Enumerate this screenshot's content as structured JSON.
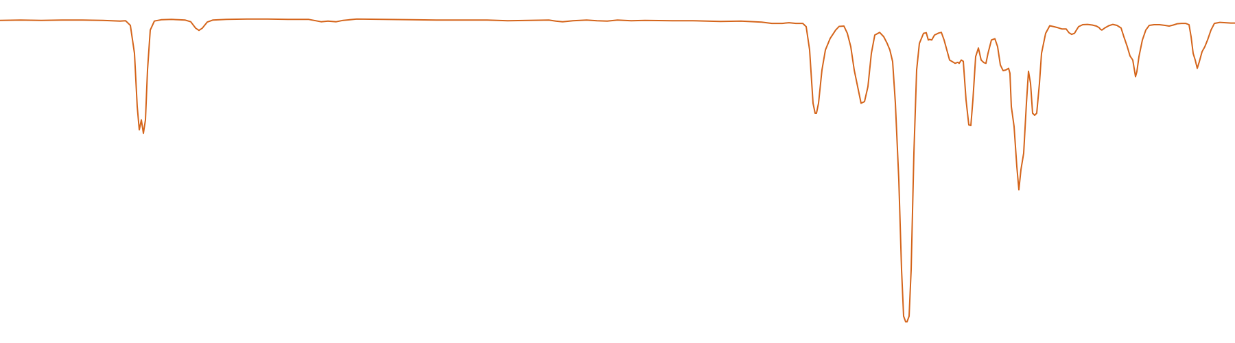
{
  "chart_data": {
    "type": "line",
    "title": "",
    "xlabel": "",
    "ylabel": "",
    "axes_visible": false,
    "grid": false,
    "legend": "none",
    "xlim": [
      0,
      1800
    ],
    "ylim": [
      0,
      100
    ],
    "series": [
      {
        "color": "#d4641a",
        "points": [
          [
            0,
            94.9
          ],
          [
            30,
            95.0
          ],
          [
            60,
            94.9
          ],
          [
            90,
            95.0
          ],
          [
            120,
            95.0
          ],
          [
            150,
            94.9
          ],
          [
            175,
            94.7
          ],
          [
            183,
            94.8
          ],
          [
            190,
            93.4
          ],
          [
            196,
            85.0
          ],
          [
            200,
            69.0
          ],
          [
            203,
            62.0
          ],
          [
            206,
            65.0
          ],
          [
            209,
            61.0
          ],
          [
            212,
            65.0
          ],
          [
            215,
            80.0
          ],
          [
            219,
            92.0
          ],
          [
            225,
            94.7
          ],
          [
            235,
            95.1
          ],
          [
            250,
            95.2
          ],
          [
            260,
            95.1
          ],
          [
            270,
            95.0
          ],
          [
            278,
            94.5
          ],
          [
            285,
            92.6
          ],
          [
            290,
            91.9
          ],
          [
            295,
            92.6
          ],
          [
            302,
            94.4
          ],
          [
            310,
            95.0
          ],
          [
            330,
            95.2
          ],
          [
            360,
            95.3
          ],
          [
            390,
            95.3
          ],
          [
            420,
            95.2
          ],
          [
            450,
            95.2
          ],
          [
            460,
            94.8
          ],
          [
            468,
            94.5
          ],
          [
            478,
            94.7
          ],
          [
            490,
            94.5
          ],
          [
            500,
            94.9
          ],
          [
            520,
            95.3
          ],
          [
            560,
            95.2
          ],
          [
            600,
            95.1
          ],
          [
            640,
            95.0
          ],
          [
            680,
            95.0
          ],
          [
            710,
            95.0
          ],
          [
            740,
            94.8
          ],
          [
            770,
            94.9
          ],
          [
            800,
            95.0
          ],
          [
            810,
            94.7
          ],
          [
            820,
            94.5
          ],
          [
            835,
            94.8
          ],
          [
            855,
            95.0
          ],
          [
            870,
            94.8
          ],
          [
            885,
            94.7
          ],
          [
            900,
            95.0
          ],
          [
            920,
            94.8
          ],
          [
            940,
            94.9
          ],
          [
            980,
            94.8
          ],
          [
            1010,
            94.8
          ],
          [
            1050,
            94.6
          ],
          [
            1080,
            94.7
          ],
          [
            1100,
            94.5
          ],
          [
            1110,
            94.4
          ],
          [
            1125,
            94.0
          ],
          [
            1140,
            94.0
          ],
          [
            1150,
            94.2
          ],
          [
            1160,
            94.0
          ],
          [
            1170,
            94.0
          ],
          [
            1175,
            93.0
          ],
          [
            1180,
            86.0
          ],
          [
            1185,
            70.0
          ],
          [
            1188,
            67.0
          ],
          [
            1190,
            67.0
          ],
          [
            1193,
            70.0
          ],
          [
            1198,
            80.0
          ],
          [
            1203,
            86.0
          ],
          [
            1210,
            89.5
          ],
          [
            1218,
            92.0
          ],
          [
            1223,
            93.1
          ],
          [
            1230,
            93.2
          ],
          [
            1235,
            91.0
          ],
          [
            1240,
            87.0
          ],
          [
            1245,
            80.0
          ],
          [
            1250,
            75.0
          ],
          [
            1255,
            70.0
          ],
          [
            1260,
            70.5
          ],
          [
            1265,
            75.0
          ],
          [
            1270,
            85.0
          ],
          [
            1275,
            90.5
          ],
          [
            1282,
            91.3
          ],
          [
            1288,
            90.0
          ],
          [
            1293,
            88.0
          ],
          [
            1297,
            86.0
          ],
          [
            1301,
            82.5
          ],
          [
            1305,
            70.0
          ],
          [
            1310,
            47.0
          ],
          [
            1314,
            20.0
          ],
          [
            1317,
            6.0
          ],
          [
            1320,
            4.3
          ],
          [
            1322,
            4.3
          ],
          [
            1325,
            6.0
          ],
          [
            1328,
            20.0
          ],
          [
            1332,
            55.0
          ],
          [
            1336,
            80.0
          ],
          [
            1340,
            88.0
          ],
          [
            1346,
            91.0
          ],
          [
            1350,
            91.2
          ],
          [
            1353,
            89.0
          ],
          [
            1355,
            89.2
          ],
          [
            1358,
            89.0
          ],
          [
            1362,
            90.5
          ],
          [
            1368,
            91.1
          ],
          [
            1372,
            91.3
          ],
          [
            1376,
            89.0
          ],
          [
            1380,
            86.0
          ],
          [
            1384,
            83.0
          ],
          [
            1388,
            82.5
          ],
          [
            1392,
            82.0
          ],
          [
            1396,
            82.3
          ],
          [
            1398,
            82.0
          ],
          [
            1401,
            83.0
          ],
          [
            1404,
            82.6
          ],
          [
            1408,
            71.0
          ],
          [
            1412,
            63.5
          ],
          [
            1415,
            63.3
          ],
          [
            1418,
            71.0
          ],
          [
            1422,
            84.0
          ],
          [
            1426,
            86.6
          ],
          [
            1430,
            83.0
          ],
          [
            1434,
            82.2
          ],
          [
            1437,
            82.0
          ],
          [
            1440,
            85.0
          ],
          [
            1445,
            89.0
          ],
          [
            1450,
            89.4
          ],
          [
            1454,
            87.0
          ],
          [
            1458,
            81.5
          ],
          [
            1462,
            79.8
          ],
          [
            1466,
            80.0
          ],
          [
            1470,
            80.5
          ],
          [
            1472,
            79.0
          ],
          [
            1474,
            69.0
          ],
          [
            1478,
            63.0
          ],
          [
            1482,
            51.0
          ],
          [
            1485,
            44.0
          ],
          [
            1488,
            50.0
          ],
          [
            1492,
            55.0
          ],
          [
            1496,
            70.0
          ],
          [
            1499,
            79.6
          ],
          [
            1502,
            76.0
          ],
          [
            1505,
            67.0
          ],
          [
            1508,
            66.4
          ],
          [
            1511,
            67.0
          ],
          [
            1515,
            76.0
          ],
          [
            1518,
            85.0
          ],
          [
            1524,
            91.0
          ],
          [
            1530,
            93.3
          ],
          [
            1536,
            93.0
          ],
          [
            1542,
            92.7
          ],
          [
            1548,
            92.3
          ],
          [
            1554,
            92.3
          ],
          [
            1558,
            91.2
          ],
          [
            1562,
            90.7
          ],
          [
            1566,
            91.0
          ],
          [
            1568,
            91.7
          ],
          [
            1572,
            93.0
          ],
          [
            1578,
            93.6
          ],
          [
            1585,
            93.7
          ],
          [
            1592,
            93.5
          ],
          [
            1598,
            93.2
          ],
          [
            1602,
            92.7
          ],
          [
            1604,
            92.2
          ],
          [
            1606,
            92.0
          ],
          [
            1610,
            92.6
          ],
          [
            1616,
            93.3
          ],
          [
            1622,
            93.7
          ],
          [
            1628,
            93.4
          ],
          [
            1634,
            92.6
          ],
          [
            1638,
            90.0
          ],
          [
            1643,
            87.0
          ],
          [
            1647,
            84.2
          ],
          [
            1651,
            83.0
          ],
          [
            1655,
            78.0
          ],
          [
            1657,
            79.5
          ],
          [
            1660,
            84.0
          ],
          [
            1665,
            89.0
          ],
          [
            1670,
            92.0
          ],
          [
            1675,
            93.4
          ],
          [
            1682,
            93.6
          ],
          [
            1690,
            93.6
          ],
          [
            1698,
            93.4
          ],
          [
            1704,
            93.2
          ],
          [
            1710,
            93.5
          ],
          [
            1716,
            93.9
          ],
          [
            1722,
            94.0
          ],
          [
            1728,
            94.0
          ],
          [
            1733,
            93.6
          ],
          [
            1736,
            90.0
          ],
          [
            1739,
            85.0
          ],
          [
            1742,
            83.0
          ],
          [
            1745,
            80.5
          ],
          [
            1748,
            82.5
          ],
          [
            1752,
            85.5
          ],
          [
            1756,
            87.0
          ],
          [
            1760,
            89.0
          ],
          [
            1765,
            92.0
          ],
          [
            1770,
            94.0
          ],
          [
            1778,
            94.3
          ],
          [
            1786,
            94.2
          ],
          [
            1794,
            94.1
          ],
          [
            1800,
            94.1
          ]
        ]
      }
    ]
  }
}
